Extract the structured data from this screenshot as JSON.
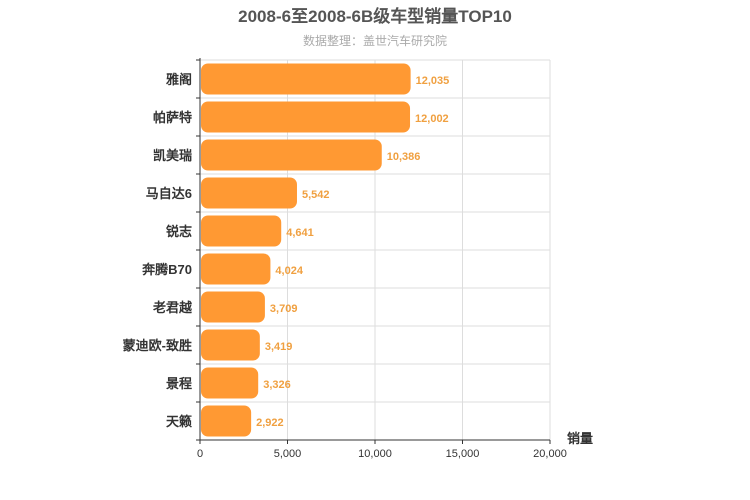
{
  "chart_data": {
    "type": "bar",
    "orientation": "horizontal",
    "title": "2008-6至2008-6B级车型销量TOP10",
    "subtitle": "数据整理：盖世汽车研究院",
    "categories": [
      "雅阁",
      "帕萨特",
      "凯美瑞",
      "马自达6",
      "锐志",
      "奔腾B70",
      "老君越",
      "蒙迪欧-致胜",
      "景程",
      "天籁"
    ],
    "values": [
      12035,
      12002,
      10386,
      5542,
      4641,
      4024,
      3709,
      3419,
      3326,
      2922
    ],
    "value_labels": [
      "12,035",
      "12,002",
      "10,386",
      "5,542",
      "4,641",
      "4,024",
      "3,709",
      "3,419",
      "3,326",
      "2,922"
    ],
    "xlabel": "销量",
    "ylabel": "",
    "xlim": [
      0,
      20000
    ],
    "ticks": [
      0,
      5000,
      10000,
      15000,
      20000
    ],
    "tick_labels": [
      "0",
      "5,000",
      "10,000",
      "15,000",
      "20,000"
    ],
    "grid": true,
    "bar_color": "#ff9933",
    "label_color": "#f0a040"
  }
}
